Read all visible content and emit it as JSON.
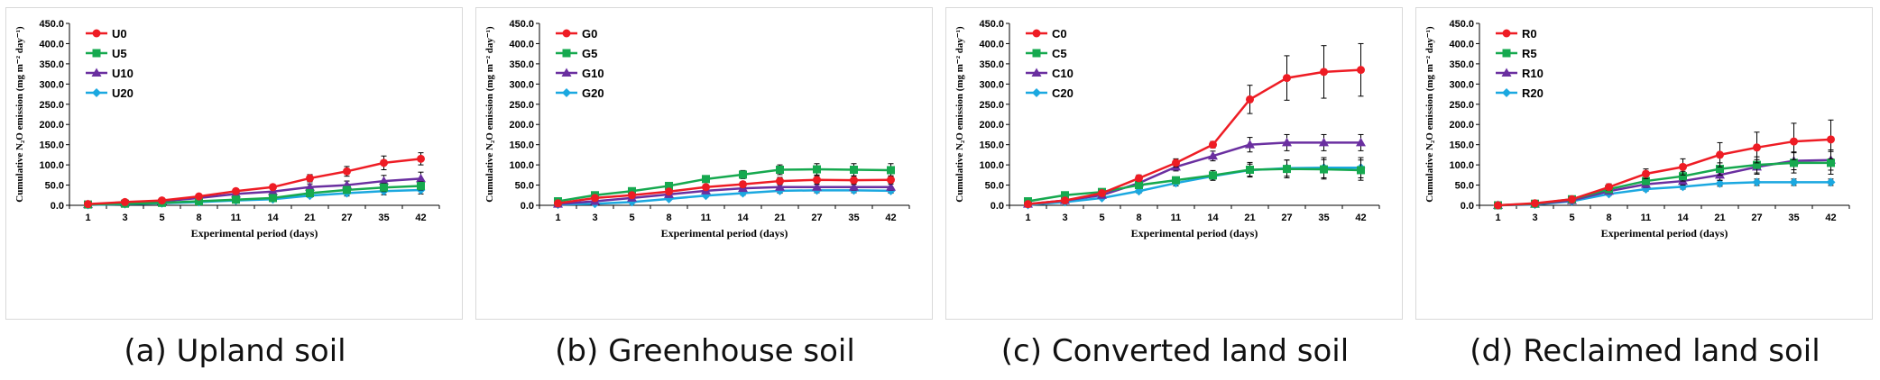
{
  "colors": {
    "s0": "#ee1c24",
    "s5": "#16a94f",
    "s10": "#6a2fa0",
    "s20": "#1ba8e0"
  },
  "chart_data": [
    {
      "type": "line",
      "caption": "(a) Upland soil",
      "xlabel": "Experimental period (days)",
      "ylabel": "Cumulative N₂O emission (mg m⁻² day⁻¹)",
      "x": [
        "1",
        "3",
        "5",
        "8",
        "11",
        "14",
        "21",
        "27",
        "35",
        "42"
      ],
      "ylim": [
        0,
        450
      ],
      "yticks": [
        "0.0",
        "50.0",
        "100.0",
        "150.0",
        "200.0",
        "250.0",
        "300.0",
        "350.0",
        "400.0",
        "450.0"
      ],
      "legend_position": "top-left",
      "series": [
        {
          "name": "U0",
          "marker": "circle",
          "color": "#ee1c24",
          "values": [
            3,
            8,
            12,
            22,
            35,
            45,
            67,
            84,
            105,
            115
          ],
          "errors": [
            2,
            2,
            3,
            4,
            5,
            6,
            9,
            12,
            17,
            15
          ]
        },
        {
          "name": "U5",
          "marker": "square",
          "color": "#16a94f",
          "values": [
            2,
            4,
            6,
            10,
            14,
            18,
            30,
            38,
            44,
            48
          ],
          "errors": [
            1,
            1,
            2,
            2,
            3,
            4,
            6,
            8,
            10,
            10
          ]
        },
        {
          "name": "U10",
          "marker": "triangle",
          "color": "#6a2fa0",
          "values": [
            2,
            6,
            10,
            18,
            28,
            34,
            45,
            50,
            60,
            66
          ],
          "errors": [
            1,
            2,
            3,
            4,
            5,
            6,
            8,
            10,
            14,
            16
          ]
        },
        {
          "name": "U20",
          "marker": "diamond",
          "color": "#1ba8e0",
          "values": [
            1,
            3,
            5,
            8,
            12,
            15,
            24,
            30,
            35,
            38
          ],
          "errors": [
            1,
            1,
            1,
            2,
            3,
            3,
            5,
            7,
            9,
            10
          ]
        }
      ]
    },
    {
      "type": "line",
      "caption": "(b) Greenhouse soil",
      "xlabel": "Experimental period (days)",
      "ylabel": "Cumulative N₂O emission (mg m⁻² day⁻¹)",
      "x": [
        "1",
        "3",
        "5",
        "8",
        "11",
        "14",
        "21",
        "27",
        "35",
        "42"
      ],
      "ylim": [
        0,
        450
      ],
      "yticks": [
        "0.0",
        "50.0",
        "100.0",
        "150.0",
        "200.0",
        "250.0",
        "300.0",
        "350.0",
        "400.0",
        "450.0"
      ],
      "legend_position": "top-left",
      "series": [
        {
          "name": "G0",
          "marker": "circle",
          "color": "#ee1c24",
          "values": [
            5,
            18,
            25,
            34,
            45,
            52,
            60,
            63,
            62,
            63
          ],
          "errors": [
            2,
            3,
            4,
            5,
            6,
            7,
            9,
            10,
            10,
            10
          ]
        },
        {
          "name": "G5",
          "marker": "square",
          "color": "#16a94f",
          "values": [
            10,
            25,
            35,
            48,
            65,
            76,
            88,
            89,
            88,
            87
          ],
          "errors": [
            3,
            4,
            5,
            7,
            8,
            10,
            12,
            14,
            15,
            16
          ]
        },
        {
          "name": "G10",
          "marker": "triangle",
          "color": "#6a2fa0",
          "values": [
            3,
            10,
            18,
            27,
            36,
            42,
            45,
            45,
            45,
            45
          ],
          "errors": [
            1,
            2,
            3,
            4,
            5,
            6,
            7,
            7,
            8,
            8
          ]
        },
        {
          "name": "G20",
          "marker": "diamond",
          "color": "#1ba8e0",
          "values": [
            2,
            4,
            8,
            16,
            24,
            30,
            36,
            37,
            37,
            36
          ],
          "errors": [
            1,
            1,
            2,
            3,
            4,
            5,
            6,
            6,
            6,
            6
          ]
        }
      ]
    },
    {
      "type": "line",
      "caption": "(c) Converted land soil",
      "xlabel": "Experimental period (days)",
      "ylabel": "Cumulative N₂O emission (mg m⁻² day⁻¹)",
      "x": [
        "1",
        "3",
        "5",
        "8",
        "11",
        "14",
        "21",
        "27",
        "35",
        "42"
      ],
      "ylim": [
        0,
        450
      ],
      "yticks": [
        "0.0",
        "50.0",
        "100.0",
        "150.0",
        "200.0",
        "250.0",
        "300.0",
        "350.0",
        "400.0",
        "450.0"
      ],
      "legend_position": "top-left",
      "series": [
        {
          "name": "C0",
          "marker": "circle",
          "color": "#ee1c24",
          "values": [
            3,
            12,
            30,
            67,
            105,
            150,
            262,
            315,
            330,
            335
          ],
          "errors": [
            1,
            3,
            5,
            8,
            10,
            8,
            35,
            55,
            65,
            65
          ]
        },
        {
          "name": "C5",
          "marker": "square",
          "color": "#16a94f",
          "values": [
            10,
            25,
            33,
            50,
            62,
            74,
            88,
            90,
            89,
            87
          ],
          "errors": [
            2,
            3,
            4,
            6,
            8,
            12,
            18,
            22,
            24,
            25
          ]
        },
        {
          "name": "C10",
          "marker": "triangle",
          "color": "#6a2fa0",
          "values": [
            3,
            12,
            25,
            55,
            95,
            122,
            150,
            155,
            155,
            155
          ],
          "errors": [
            1,
            3,
            5,
            7,
            10,
            12,
            18,
            20,
            20,
            20
          ]
        },
        {
          "name": "C20",
          "marker": "diamond",
          "color": "#1ba8e0",
          "values": [
            1,
            8,
            18,
            35,
            55,
            72,
            87,
            92,
            93,
            93
          ],
          "errors": [
            1,
            2,
            3,
            5,
            7,
            10,
            15,
            20,
            25,
            25
          ]
        }
      ]
    },
    {
      "type": "line",
      "caption": "(d) Reclaimed land soil",
      "xlabel": "Experimental period (days)",
      "ylabel": "Cumulative N₂O emission (mg m⁻² day⁻¹)",
      "x": [
        "1",
        "3",
        "5",
        "8",
        "11",
        "14",
        "21",
        "27",
        "35",
        "42"
      ],
      "ylim": [
        0,
        450
      ],
      "yticks": [
        "0.0",
        "50.0",
        "100.0",
        "150.0",
        "200.0",
        "250.0",
        "300.0",
        "350.0",
        "400.0",
        "450.0"
      ],
      "legend_position": "top-left",
      "series": [
        {
          "name": "R0",
          "marker": "circle",
          "color": "#ee1c24",
          "values": [
            0,
            5,
            15,
            45,
            78,
            95,
            125,
            143,
            158,
            163
          ],
          "errors": [
            1,
            2,
            4,
            8,
            12,
            20,
            30,
            38,
            45,
            48
          ]
        },
        {
          "name": "R5",
          "marker": "square",
          "color": "#16a94f",
          "values": [
            0,
            4,
            15,
            40,
            60,
            72,
            90,
            100,
            105,
            105
          ],
          "errors": [
            1,
            2,
            3,
            6,
            9,
            12,
            15,
            20,
            25,
            28
          ]
        },
        {
          "name": "R10",
          "marker": "triangle",
          "color": "#6a2fa0",
          "values": [
            0,
            3,
            12,
            35,
            52,
            60,
            75,
            95,
            110,
            112
          ],
          "errors": [
            1,
            2,
            3,
            5,
            8,
            10,
            13,
            18,
            22,
            25
          ]
        },
        {
          "name": "R20",
          "marker": "diamond",
          "color": "#1ba8e0",
          "values": [
            0,
            2,
            10,
            28,
            40,
            46,
            54,
            57,
            57,
            57
          ],
          "errors": [
            1,
            1,
            2,
            4,
            5,
            6,
            7,
            8,
            8,
            8
          ]
        }
      ]
    }
  ]
}
